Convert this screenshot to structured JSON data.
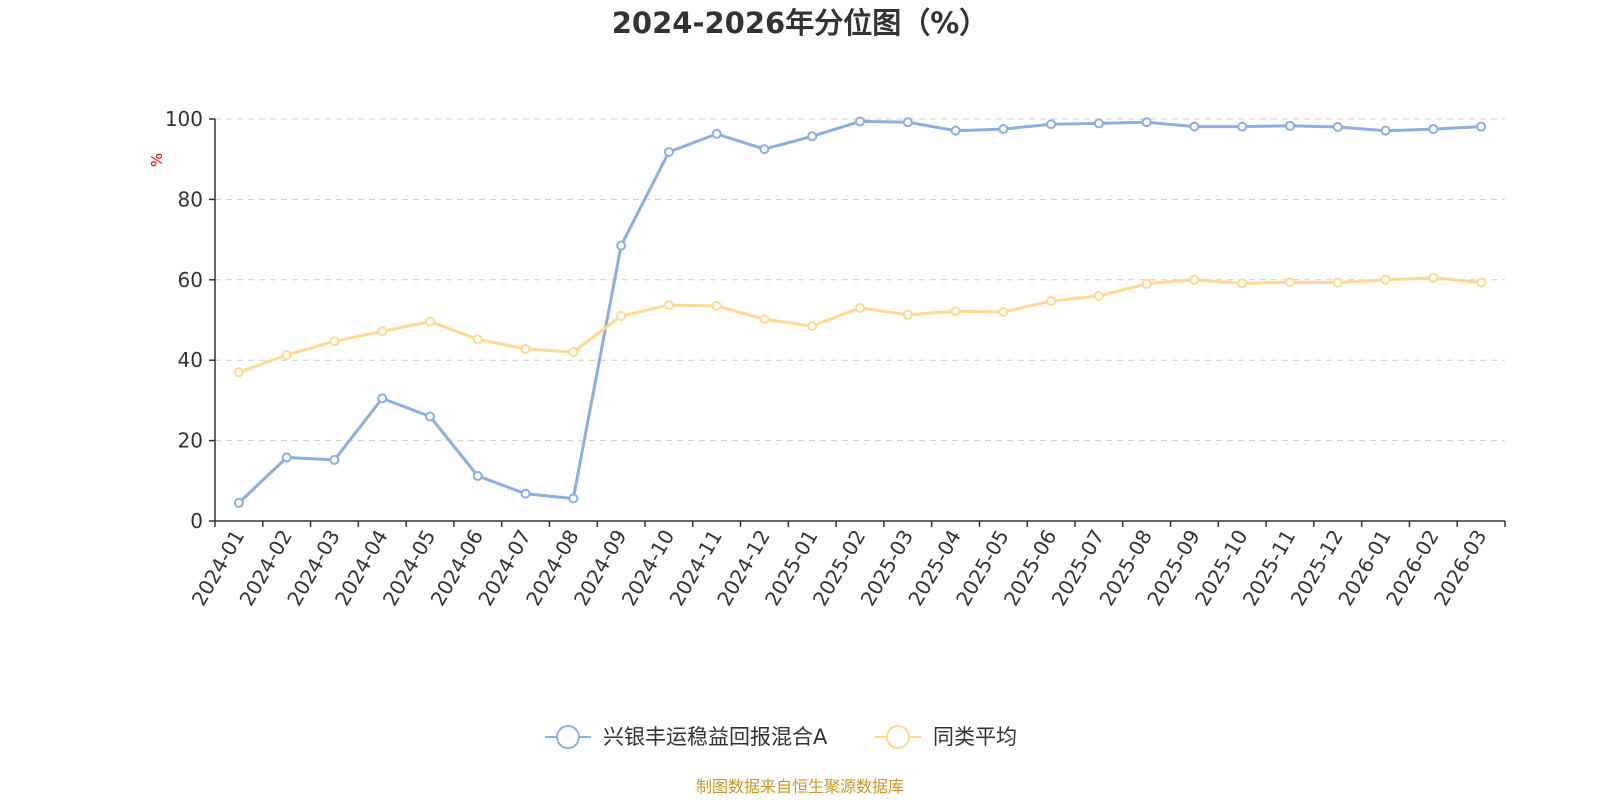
{
  "chart_data": {
    "type": "line",
    "title": "2024-2026年分位图（%）",
    "ylabel": "%",
    "ylim": [
      0,
      100
    ],
    "yticks": [
      0,
      20,
      40,
      60,
      80,
      100
    ],
    "grid": true,
    "legend_position": "bottom",
    "categories": [
      "2024-01",
      "2024-02",
      "2024-03",
      "2024-04",
      "2024-05",
      "2024-06",
      "2024-07",
      "2024-08",
      "2024-09",
      "2024-10",
      "2024-11",
      "2024-12",
      "2025-01",
      "2025-02",
      "2025-03",
      "2025-04",
      "2025-05",
      "2025-06",
      "2025-07",
      "2025-08",
      "2025-09",
      "2025-10",
      "2025-11",
      "2025-12",
      "2026-01",
      "2026-02",
      "2026-03"
    ],
    "series": [
      {
        "name": "兴银丰运稳益回报混合A",
        "color": "#8eaedb",
        "values": [
          4.5,
          15.8,
          15.2,
          30.5,
          26.0,
          11.2,
          6.8,
          5.6,
          68.5,
          91.8,
          96.3,
          92.5,
          95.7,
          99.4,
          99.2,
          97.1,
          97.5,
          98.7,
          98.9,
          99.2,
          98.1,
          98.1,
          98.3,
          98.0,
          97.1,
          97.5,
          98.1
        ]
      },
      {
        "name": "同类平均",
        "color": "#fdd996",
        "values": [
          37.0,
          41.3,
          44.7,
          47.2,
          49.6,
          45.2,
          42.8,
          42.0,
          51.0,
          53.7,
          53.5,
          50.2,
          48.5,
          53.0,
          51.3,
          52.2,
          52.0,
          54.7,
          56.0,
          59.0,
          60.0,
          59.1,
          59.4,
          59.3,
          60.0,
          60.5,
          59.3
        ]
      }
    ]
  },
  "footer": {
    "source": "制图数据来自恒生聚源数据库"
  }
}
